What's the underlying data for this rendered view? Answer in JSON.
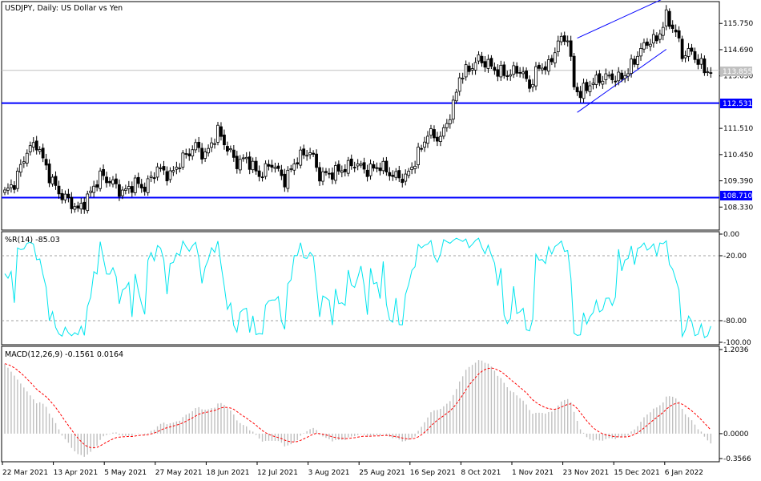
{
  "colors": {
    "frame": "#000000",
    "hline": "#0000ff",
    "hline_label_bg": "#0000ff",
    "hline_label_text": "#ffffff",
    "channel": "#0000ff",
    "wpr": "#00e5ee",
    "macd_hist": "#c0c0c0",
    "macd_signal": "#ff0000",
    "price_line": "#c0c0c0",
    "level": "#a0a0a0"
  },
  "price_panel": {
    "title": "USDJPY, Daily:  US Dollar vs Yen",
    "current_price_label": "113.855",
    "hlines": [
      {
        "label": "112.531",
        "value": 112.531
      },
      {
        "label": "108.710",
        "value": 108.71
      }
    ],
    "ticks": [
      "115.750",
      "114.690",
      "113.630",
      "111.510",
      "110.450",
      "109.390",
      "108.330"
    ]
  },
  "wpr_panel": {
    "title": "%R(14) -85.03",
    "ticks": [
      "0.00",
      "-20.00",
      "-80.00",
      "-100.00"
    ]
  },
  "macd_panel": {
    "title": "MACD(12,26,9) -0.1561 0.0164",
    "ticks": [
      "1.2036",
      "0.0000",
      "-0.3566"
    ]
  },
  "x_axis": {
    "labels": [
      "22 Mar 2021",
      "13 Apr 2021",
      "5 May 2021",
      "27 May 2021",
      "18 Jun 2021",
      "12 Jul 2021",
      "3 Aug 2021",
      "25 Aug 2021",
      "16 Sep 2021",
      "8 Oct 2021",
      "1 Nov 2021",
      "23 Nov 2021",
      "15 Dec 2021",
      "6 Jan 2022"
    ]
  },
  "chart_data": {
    "type": "candlestick",
    "symbol": "USDJPY",
    "timeframe": "Daily",
    "price_ylim": [
      107.4,
      116.6
    ],
    "close_anchors": [
      [
        0,
        108.9
      ],
      [
        3,
        109.3
      ],
      [
        7,
        110.6
      ],
      [
        10,
        110.9
      ],
      [
        14,
        109.6
      ],
      [
        17,
        108.9
      ],
      [
        20,
        108.6
      ],
      [
        23,
        108.2
      ],
      [
        26,
        108.7
      ],
      [
        30,
        109.6
      ],
      [
        34,
        109.3
      ],
      [
        37,
        108.9
      ],
      [
        41,
        109.3
      ],
      [
        44,
        109.1
      ],
      [
        48,
        109.9
      ],
      [
        52,
        109.6
      ],
      [
        56,
        110.3
      ],
      [
        60,
        110.8
      ],
      [
        63,
        110.4
      ],
      [
        67,
        111.4
      ],
      [
        70,
        110.7
      ],
      [
        73,
        110.1
      ],
      [
        76,
        110.3
      ],
      [
        80,
        109.6
      ],
      [
        84,
        110.1
      ],
      [
        88,
        109.4
      ],
      [
        92,
        110.3
      ],
      [
        96,
        110.6
      ],
      [
        99,
        109.6
      ],
      [
        103,
        109.7
      ],
      [
        107,
        109.9
      ],
      [
        110,
        110.1
      ],
      [
        114,
        109.8
      ],
      [
        118,
        110.0
      ],
      [
        122,
        109.6
      ],
      [
        126,
        109.5
      ],
      [
        129,
        110.2
      ],
      [
        133,
        111.3
      ],
      [
        137,
        111.1
      ],
      [
        141,
        112.4
      ],
      [
        143,
        113.6
      ],
      [
        146,
        113.9
      ],
      [
        149,
        114.3
      ],
      [
        152,
        114.1
      ],
      [
        155,
        113.8
      ],
      [
        158,
        113.7
      ],
      [
        162,
        113.9
      ],
      [
        165,
        113.2
      ],
      [
        168,
        114.0
      ],
      [
        171,
        114.0
      ],
      [
        174,
        115.0
      ],
      [
        177,
        115.2
      ],
      [
        179,
        113.2
      ],
      [
        181,
        112.9
      ],
      [
        184,
        113.3
      ],
      [
        187,
        113.5
      ],
      [
        190,
        113.6
      ],
      [
        193,
        113.5
      ],
      [
        196,
        113.8
      ],
      [
        199,
        114.5
      ],
      [
        202,
        115.0
      ],
      [
        205,
        115.1
      ],
      [
        208,
        116.0
      ],
      [
        211,
        115.4
      ],
      [
        213,
        114.5
      ],
      [
        216,
        114.6
      ],
      [
        218,
        114.2
      ],
      [
        220,
        113.9
      ],
      [
        222,
        113.8
      ]
    ],
    "wpr_ylim": [
      -100,
      0
    ],
    "wpr_levels": [
      -20,
      -80
    ],
    "wpr_last": -85.03,
    "macd_params": "12,26,9",
    "macd_last": -0.1561,
    "signal_last": 0.0164,
    "macd_ylim": [
      -0.3566,
      1.2036
    ]
  }
}
